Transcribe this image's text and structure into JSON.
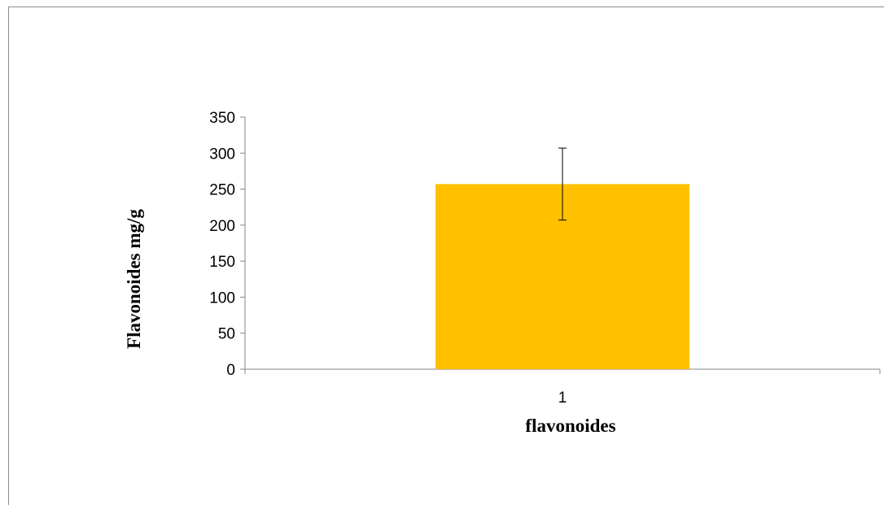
{
  "chart_data": {
    "type": "bar",
    "title": "",
    "categories": [
      "1"
    ],
    "values": [
      257
    ],
    "error_bars": [
      50
    ],
    "xlabel": "flavonoides",
    "ylabel": "Flavonoides  mg/g",
    "ylim": [
      0,
      350
    ],
    "yticks": [
      0,
      50,
      100,
      150,
      200,
      250,
      300,
      350
    ],
    "grid": false,
    "legend": "none",
    "bar_color": "#FFC000"
  }
}
